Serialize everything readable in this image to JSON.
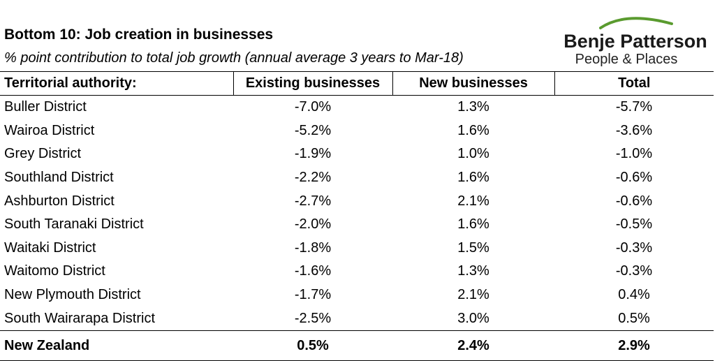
{
  "header": {
    "title": "Bottom 10: Job creation in businesses",
    "subtitle": "% point contribution to total job growth (annual average 3 years to Mar-18)"
  },
  "logo": {
    "name": "Benje Patterson",
    "tagline": "People & Places",
    "accent_color": "#5a9b2f"
  },
  "chart_data": {
    "type": "table",
    "title": "Bottom 10: Job creation in businesses",
    "subtitle": "% point contribution to total job growth (annual average 3 years to Mar-18)",
    "columns": [
      "Territorial authority:",
      "Existing businesses",
      "New businesses",
      "Total"
    ],
    "rows": [
      [
        "Buller District",
        "-7.0%",
        "1.3%",
        "-5.7%"
      ],
      [
        "Wairoa District",
        "-5.2%",
        "1.6%",
        "-3.6%"
      ],
      [
        "Grey District",
        "-1.9%",
        "1.0%",
        "-1.0%"
      ],
      [
        "Southland District",
        "-2.2%",
        "1.6%",
        "-0.6%"
      ],
      [
        "Ashburton District",
        "-2.7%",
        "2.1%",
        "-0.6%"
      ],
      [
        "South Taranaki District",
        "-2.0%",
        "1.6%",
        "-0.5%"
      ],
      [
        "Waitaki District",
        "-1.8%",
        "1.5%",
        "-0.3%"
      ],
      [
        "Waitomo District",
        "-1.6%",
        "1.3%",
        "-0.3%"
      ],
      [
        "New Plymouth District",
        "-1.7%",
        "2.1%",
        "0.4%"
      ],
      [
        "South Wairarapa District",
        "-2.5%",
        "3.0%",
        "0.5%"
      ]
    ],
    "total_row": [
      "New Zealand",
      "0.5%",
      "2.4%",
      "2.9%"
    ]
  }
}
